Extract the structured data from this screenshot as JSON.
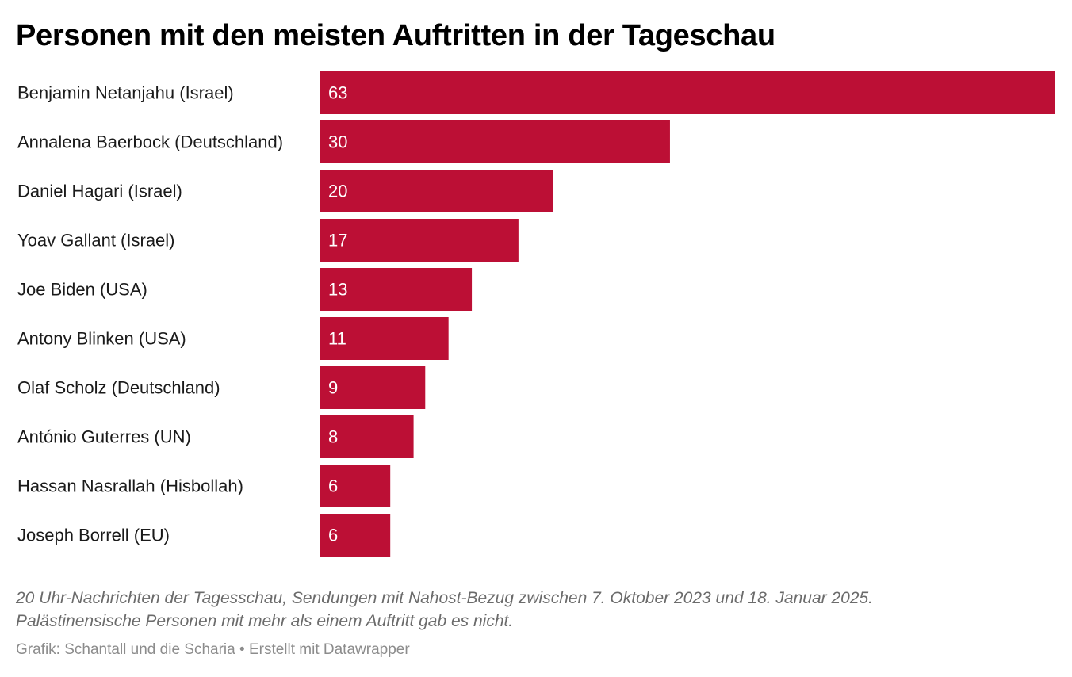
{
  "title": "Personen mit den meisten Auftritten in der Tageschau",
  "notes": {
    "line1": "20 Uhr-Nachrichten der Tagesschau, Sendungen mit Nahost-Bezug zwischen 7. Oktober 2023 und 18. Januar 2025.",
    "line2": "Palästinensische Personen mit mehr als einem Auftritt gab es nicht."
  },
  "footer": {
    "graphic_label": "Grafik: Schantall und die Scharia",
    "separator": "•",
    "made_with": "Erstellt mit Datawrapper"
  },
  "chart_data": {
    "type": "bar",
    "orientation": "horizontal",
    "title": "Personen mit den meisten Auftritten in der Tageschau",
    "categories": [
      "Benjamin Netanjahu (Israel)",
      "Annalena Baerbock (Deutschland)",
      "Daniel Hagari (Israel)",
      "Yoav Gallant (Israel)",
      "Joe Biden (USA)",
      "Antony Blinken (USA)",
      "Olaf Scholz (Deutschland)",
      "António Guterres (UN)",
      "Hassan Nasrallah (Hisbollah)",
      "Joseph Borrell (EU)"
    ],
    "values": [
      63,
      30,
      20,
      17,
      13,
      11,
      9,
      8,
      6,
      6
    ],
    "xlim": [
      0,
      63
    ],
    "grid": false,
    "legend": "none",
    "data_labels": "inside-left",
    "colors": {
      "bar": "#bc0f35",
      "bar_label": "#ffffff",
      "category_label": "#1a1a1a"
    }
  }
}
